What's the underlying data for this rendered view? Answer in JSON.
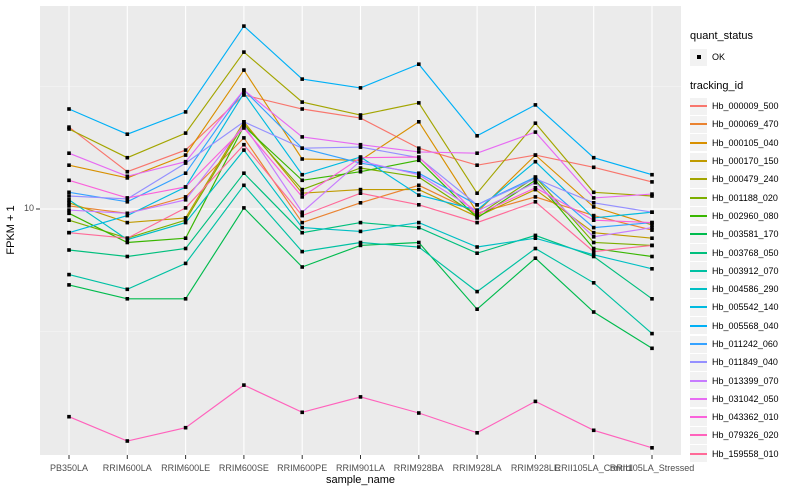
{
  "colors": {
    "panel_bg": "#EBEBEB",
    "grid": "#FFFFFF",
    "axis_text": "#4D4D4D",
    "tick": "#333333",
    "point": "#000000",
    "legend_key_bg": "#F2F2F2"
  },
  "chart_data": {
    "type": "line",
    "xlabel": "sample_name",
    "ylabel": "FPKM + 1",
    "y_scale": "log10",
    "y_ticks": [
      {
        "value": 10,
        "label": "10"
      }
    ],
    "ylim_px_note": "log scale, only the 10 break labelled",
    "grid": "on",
    "legend_position": "right",
    "categories": [
      "PB350LA",
      "RRIM600LA",
      "RRIM600LE",
      "RRIM600SE",
      "RRIM600PE",
      "RRIM901LA",
      "RRIM928BA",
      "RRIM928LA",
      "RRIM928LE",
      "RRII105LA_Control",
      "RRII105LA_Stressed"
    ],
    "legend": {
      "quant_status_title": "quant_status",
      "quant_status_items": [
        "OK"
      ],
      "tracking_id_title": "tracking_id"
    },
    "series": [
      {
        "name": "Hb_000009_500",
        "color": "#F8766D",
        "values": [
          21.6,
          14.2,
          17.4,
          29.2,
          25.6,
          23.5,
          17.7,
          15.1,
          16.6,
          14.8,
          12.9
        ]
      },
      {
        "name": "Hb_000069_470",
        "color": "#EA8331",
        "values": [
          10.3,
          9.6,
          11.2,
          19.5,
          8.8,
          10.6,
          12.5,
          9.6,
          11.2,
          9.4,
          8.2
        ]
      },
      {
        "name": "Hb_000105_040",
        "color": "#D89000",
        "values": [
          15.1,
          13.4,
          16.6,
          36.9,
          16.0,
          15.8,
          22.7,
          9.7,
          16.6,
          10.2,
          8.6
        ]
      },
      {
        "name": "Hb_000170_150",
        "color": "#C09B00",
        "values": [
          10.6,
          8.8,
          9.2,
          22.7,
          11.6,
          12.0,
          12.0,
          9.3,
          12.0,
          8.0,
          7.6
        ]
      },
      {
        "name": "Hb_000479_240",
        "color": "#A3A500",
        "values": [
          21.2,
          16.2,
          20.4,
          43.7,
          27.3,
          24.2,
          27.1,
          11.6,
          22.4,
          11.7,
          11.3
        ]
      },
      {
        "name": "Hb_001188_020",
        "color": "#7CAE00",
        "values": [
          9.0,
          7.6,
          9.0,
          22.2,
          12.0,
          14.7,
          13.5,
          9.4,
          13.5,
          7.3,
          7.1
        ]
      },
      {
        "name": "Hb_002960_080",
        "color": "#39B600",
        "values": [
          9.6,
          7.3,
          7.6,
          21.8,
          13.1,
          14.2,
          15.8,
          9.2,
          13.1,
          6.9,
          6.4
        ]
      },
      {
        "name": "Hb_003581_170",
        "color": "#00BB4E",
        "values": [
          4.9,
          4.3,
          4.3,
          10.1,
          5.8,
          7.1,
          7.3,
          3.9,
          6.3,
          3.8,
          2.7
        ]
      },
      {
        "name": "Hb_003768_050",
        "color": "#00BF7D",
        "values": [
          6.8,
          6.4,
          6.9,
          14.0,
          8.0,
          8.8,
          8.4,
          6.6,
          7.8,
          6.4,
          4.3
        ]
      },
      {
        "name": "Hb_003912_070",
        "color": "#00C1A3",
        "values": [
          5.4,
          4.7,
          6.0,
          12.5,
          6.7,
          7.3,
          7.0,
          4.6,
          6.9,
          5.0,
          3.1
        ]
      },
      {
        "name": "Hb_004586_290",
        "color": "#00BFC4",
        "values": [
          10.9,
          7.5,
          8.8,
          17.4,
          8.4,
          8.1,
          8.8,
          7.0,
          7.6,
          6.5,
          5.7
        ]
      },
      {
        "name": "Hb_005542_140",
        "color": "#00BAE0",
        "values": [
          8.0,
          9.4,
          12.3,
          29.7,
          13.8,
          16.3,
          11.4,
          9.9,
          15.6,
          9.2,
          9.7
        ]
      },
      {
        "name": "Hb_005568_040",
        "color": "#00B0F6",
        "values": [
          25.6,
          20.2,
          24.9,
          55.8,
          33.9,
          31.2,
          39.0,
          19.9,
          26.6,
          16.2,
          13.8
        ]
      },
      {
        "name": "Hb_011242_060",
        "color": "#35A2FF",
        "values": [
          11.7,
          10.7,
          14.0,
          30.6,
          17.7,
          15.4,
          14.0,
          10.4,
          13.5,
          8.4,
          8.8
        ]
      },
      {
        "name": "Hb_011849_040",
        "color": "#9590FF",
        "values": [
          11.3,
          11.0,
          15.4,
          22.7,
          17.7,
          17.9,
          16.2,
          10.4,
          13.3,
          10.6,
          9.7
        ]
      },
      {
        "name": "Hb_013399_070",
        "color": "#C77CFF",
        "values": [
          9.9,
          9.6,
          10.9,
          22.0,
          9.7,
          15.7,
          13.8,
          9.8,
          12.8,
          7.7,
          8.4
        ]
      },
      {
        "name": "Hb_031042_050",
        "color": "#E76BF3",
        "values": [
          16.9,
          13.6,
          15.6,
          30.6,
          19.7,
          18.3,
          17.1,
          16.9,
          20.6,
          11.1,
          11.5
        ]
      },
      {
        "name": "Hb_043362_010",
        "color": "#FA62DB",
        "values": [
          13.1,
          11.1,
          12.3,
          21.4,
          11.2,
          16.2,
          16.3,
          9.5,
          12.2,
          9.0,
          8.8
        ]
      },
      {
        "name": "Hb_079326_020",
        "color": "#FF62BC",
        "values": [
          1.42,
          1.13,
          1.28,
          1.91,
          1.48,
          1.71,
          1.47,
          1.22,
          1.64,
          1.25,
          1.06
        ]
      },
      {
        "name": "Hb_159558_010",
        "color": "#FF6A98",
        "values": [
          8.0,
          7.6,
          10.1,
          18.3,
          9.4,
          11.6,
          10.4,
          8.8,
          10.7,
          6.7,
          7.1
        ]
      }
    ]
  }
}
